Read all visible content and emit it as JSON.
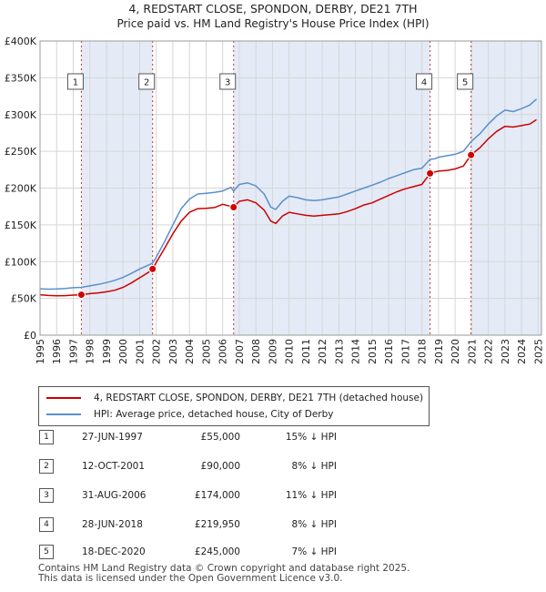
{
  "title_line1": "4, REDSTART CLOSE, SPONDON, DERBY, DE21 7TH",
  "title_line2": "Price paid vs. HM Land Registry's House Price Index (HPI)",
  "chart_data": {
    "type": "line",
    "title": "4, REDSTART CLOSE, SPONDON, DERBY, DE21 7TH",
    "subtitle": "Price paid vs. HM Land Registry's House Price Index (HPI)",
    "xlim": [
      1995,
      2025.2
    ],
    "ylim": [
      0,
      400000
    ],
    "x_ticks": [
      1995,
      1996,
      1997,
      1998,
      1999,
      2000,
      2001,
      2002,
      2003,
      2004,
      2005,
      2006,
      2007,
      2008,
      2009,
      2010,
      2011,
      2012,
      2013,
      2014,
      2015,
      2016,
      2017,
      2018,
      2019,
      2020,
      2021,
      2022,
      2023,
      2024,
      2025
    ],
    "y_ticks": [
      {
        "value": 0,
        "label": "£0"
      },
      {
        "value": 50000,
        "label": "£50K"
      },
      {
        "value": 100000,
        "label": "£100K"
      },
      {
        "value": 150000,
        "label": "£150K"
      },
      {
        "value": 200000,
        "label": "£200K"
      },
      {
        "value": 250000,
        "label": "£250K"
      },
      {
        "value": 300000,
        "label": "£300K"
      },
      {
        "value": 350000,
        "label": "£350K"
      },
      {
        "value": 400000,
        "label": "£400K"
      }
    ],
    "grid": true,
    "shaded_periods": [
      [
        1997.49,
        2001.78
      ],
      [
        2006.66,
        2018.49
      ],
      [
        2020.96,
        2025.2
      ]
    ],
    "series": [
      {
        "name": "4, REDSTART CLOSE, SPONDON, DERBY, DE21 7TH (detached house)",
        "color": "#cc0000",
        "points": [
          [
            1995,
            55000
          ],
          [
            1995.5,
            54000
          ],
          [
            1996,
            53500
          ],
          [
            1996.5,
            53800
          ],
          [
            1997,
            54500
          ],
          [
            1997.49,
            55000
          ],
          [
            1998,
            56500
          ],
          [
            1998.5,
            57500
          ],
          [
            1999,
            59000
          ],
          [
            1999.5,
            61000
          ],
          [
            2000,
            65000
          ],
          [
            2000.5,
            71000
          ],
          [
            2001,
            78000
          ],
          [
            2001.5,
            85000
          ],
          [
            2001.78,
            90000
          ],
          [
            2002,
            99000
          ],
          [
            2002.5,
            118000
          ],
          [
            2003,
            138000
          ],
          [
            2003.5,
            155000
          ],
          [
            2004,
            167000
          ],
          [
            2004.5,
            172000
          ],
          [
            2005,
            172500
          ],
          [
            2005.5,
            173500
          ],
          [
            2006,
            178000
          ],
          [
            2006.5,
            175000
          ],
          [
            2006.66,
            174000
          ],
          [
            2007,
            182000
          ],
          [
            2007.5,
            184000
          ],
          [
            2008,
            180000
          ],
          [
            2008.5,
            170000
          ],
          [
            2008.9,
            155000
          ],
          [
            2009.2,
            152000
          ],
          [
            2009.6,
            162000
          ],
          [
            2010,
            167000
          ],
          [
            2010.5,
            165000
          ],
          [
            2011,
            163000
          ],
          [
            2011.5,
            162000
          ],
          [
            2012,
            163000
          ],
          [
            2012.5,
            164000
          ],
          [
            2013,
            165000
          ],
          [
            2013.5,
            168000
          ],
          [
            2014,
            172000
          ],
          [
            2014.5,
            177000
          ],
          [
            2015,
            180000
          ],
          [
            2015.5,
            185000
          ],
          [
            2016,
            190000
          ],
          [
            2016.5,
            195000
          ],
          [
            2017,
            199000
          ],
          [
            2017.5,
            202000
          ],
          [
            2018,
            205000
          ],
          [
            2018.49,
            219950
          ],
          [
            2018.8,
            222000
          ],
          [
            2019,
            223000
          ],
          [
            2019.5,
            224000
          ],
          [
            2020,
            226000
          ],
          [
            2020.5,
            230000
          ],
          [
            2020.96,
            245000
          ],
          [
            2021.5,
            255000
          ],
          [
            2022,
            267000
          ],
          [
            2022.5,
            277000
          ],
          [
            2023,
            284000
          ],
          [
            2023.5,
            283000
          ],
          [
            2024,
            285000
          ],
          [
            2024.5,
            287000
          ],
          [
            2024.9,
            293000
          ]
        ]
      },
      {
        "name": "HPI: Average price, detached house, City of Derby",
        "color": "#5b8fcc",
        "points": [
          [
            1995,
            63000
          ],
          [
            1995.5,
            62500
          ],
          [
            1996,
            62800
          ],
          [
            1996.5,
            63500
          ],
          [
            1997,
            64500
          ],
          [
            1997.49,
            65000
          ],
          [
            1998,
            67000
          ],
          [
            1998.5,
            69000
          ],
          [
            1999,
            71500
          ],
          [
            1999.5,
            74500
          ],
          [
            2000,
            78500
          ],
          [
            2000.5,
            84000
          ],
          [
            2001,
            90000
          ],
          [
            2001.5,
            95000
          ],
          [
            2001.78,
            98000
          ],
          [
            2002,
            106000
          ],
          [
            2002.5,
            127000
          ],
          [
            2003,
            150000
          ],
          [
            2003.5,
            172000
          ],
          [
            2004,
            185000
          ],
          [
            2004.5,
            192000
          ],
          [
            2005,
            193000
          ],
          [
            2005.5,
            194000
          ],
          [
            2006,
            196000
          ],
          [
            2006.5,
            201000
          ],
          [
            2006.66,
            196000
          ],
          [
            2007,
            205000
          ],
          [
            2007.5,
            207000
          ],
          [
            2008,
            203000
          ],
          [
            2008.5,
            192000
          ],
          [
            2008.9,
            174000
          ],
          [
            2009.2,
            171000
          ],
          [
            2009.6,
            182000
          ],
          [
            2010,
            189000
          ],
          [
            2010.5,
            187000
          ],
          [
            2011,
            184000
          ],
          [
            2011.5,
            183000
          ],
          [
            2012,
            184000
          ],
          [
            2012.5,
            186000
          ],
          [
            2013,
            188000
          ],
          [
            2013.5,
            192000
          ],
          [
            2014,
            196000
          ],
          [
            2014.5,
            200000
          ],
          [
            2015,
            204000
          ],
          [
            2015.5,
            208000
          ],
          [
            2016,
            213000
          ],
          [
            2016.5,
            217000
          ],
          [
            2017,
            221000
          ],
          [
            2017.5,
            225000
          ],
          [
            2018,
            227000
          ],
          [
            2018.49,
            239000
          ],
          [
            2018.8,
            240000
          ],
          [
            2019,
            242000
          ],
          [
            2019.5,
            244000
          ],
          [
            2020,
            246000
          ],
          [
            2020.5,
            250000
          ],
          [
            2020.96,
            263000
          ],
          [
            2021.5,
            274000
          ],
          [
            2022,
            287000
          ],
          [
            2022.5,
            298000
          ],
          [
            2023,
            306000
          ],
          [
            2023.5,
            304000
          ],
          [
            2024,
            308000
          ],
          [
            2024.5,
            313000
          ],
          [
            2024.9,
            321000
          ]
        ]
      }
    ],
    "sales": [
      {
        "n": "1",
        "x": 1997.49,
        "y": 55000
      },
      {
        "n": "2",
        "x": 2001.78,
        "y": 90000
      },
      {
        "n": "3",
        "x": 2006.66,
        "y": 174000
      },
      {
        "n": "4",
        "x": 2018.49,
        "y": 219950
      },
      {
        "n": "5",
        "x": 2020.96,
        "y": 245000
      }
    ]
  },
  "legend": {
    "item1": "4, REDSTART CLOSE, SPONDON, DERBY, DE21 7TH (detached house)",
    "item2": "HPI: Average price, detached house, City of Derby"
  },
  "sales_table": [
    {
      "n": "1",
      "date": "27-JUN-1997",
      "price": "£55,000",
      "hpi": "15% ↓ HPI"
    },
    {
      "n": "2",
      "date": "12-OCT-2001",
      "price": "£90,000",
      "hpi": "8% ↓ HPI"
    },
    {
      "n": "3",
      "date": "31-AUG-2006",
      "price": "£174,000",
      "hpi": "11% ↓ HPI"
    },
    {
      "n": "4",
      "date": "28-JUN-2018",
      "price": "£219,950",
      "hpi": "8% ↓ HPI"
    },
    {
      "n": "5",
      "date": "18-DEC-2020",
      "price": "£245,000",
      "hpi": "7% ↓ HPI"
    }
  ],
  "footer": {
    "line1": "Contains HM Land Registry data © Crown copyright and database right 2025.",
    "line2": "This data is licensed under the Open Government Licence v3.0."
  }
}
